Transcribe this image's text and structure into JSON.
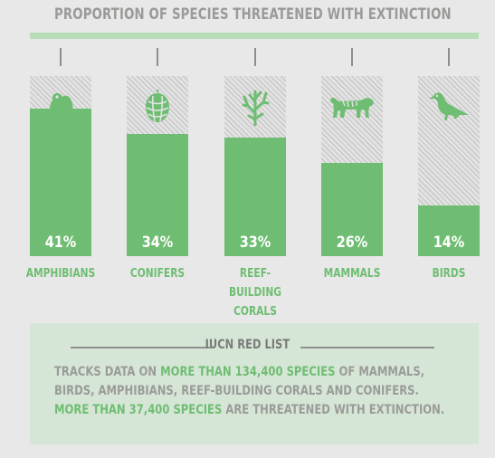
{
  "chart_data": {
    "type": "bar",
    "title": "PROPORTION OF SPECIES THREATENED WITH EXTINCTION",
    "categories": [
      "AMPHIBIANS",
      "CONIFERS",
      "REEF-BUILDING CORALS",
      "MAMMALS",
      "BIRDS"
    ],
    "values": [
      41,
      34,
      33,
      26,
      14
    ],
    "value_labels": [
      "41%",
      "34%",
      "33%",
      "26%",
      "14%"
    ],
    "icons": [
      "frog-icon",
      "pinecone-icon",
      "coral-icon",
      "tiger-icon",
      "bird-icon"
    ],
    "ylim": [
      0,
      100
    ],
    "colors": {
      "bar": "#6fbd73",
      "track_hatch": "#c6c7c6",
      "accent": "#b7dcb8"
    }
  },
  "panel": {
    "heading": "IUCN RED LIST",
    "line1_a": "TRACKS DATA ON ",
    "line1_b": "MORE THAN 134,400 SPECIES",
    "line1_c": " OF MAMMALS,",
    "line2": "BIRDS, AMPHIBIANS, REEF-BUILDING CORALS AND CONIFERS.",
    "line3_a": "MORE THAN 37,400 SPECIES",
    "line3_b": " ARE THREATENED WITH EXTINCTION."
  }
}
